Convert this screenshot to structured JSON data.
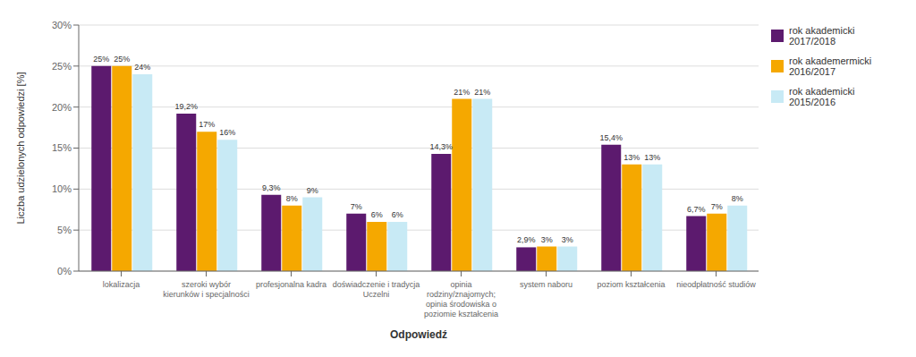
{
  "chart_data": {
    "type": "bar",
    "xlabel": "Odpowiedź",
    "ylabel": "Liczba udzielonych odpowiedzi [%]",
    "categories": [
      "lokalizacja",
      "szeroki wybór\nkierunków i specjalności",
      "profesjonalna kadra",
      "doświadczenie i tradycja\nUczelni",
      "opinia\nrodziny/znajomych;\nopinia środowiska o\npoziomie kształcenia",
      "system naboru",
      "poziom kształcenia",
      "nieodpłatność studiów"
    ],
    "series": [
      {
        "name": "rok akademicki\n2017/2018",
        "color": "#5c1a6e",
        "values": [
          25,
          19.2,
          9.3,
          7,
          14.3,
          2.9,
          15.4,
          6.7
        ],
        "value_labels": [
          "25%",
          "19,2%",
          "9,3%",
          "7%",
          "14,3%",
          "2,9%",
          "15,4%",
          "6,7%"
        ]
      },
      {
        "name": "rok akademermicki\n2016/2017",
        "color": "#f5a800",
        "values": [
          25,
          17,
          8,
          6,
          21,
          3,
          13,
          7
        ],
        "value_labels": [
          "25%",
          "17%",
          "8%",
          "6%",
          "21%",
          "3%",
          "13%",
          "7%"
        ]
      },
      {
        "name": "rok akademicki\n2015/2016",
        "color": "#c8eaf5",
        "values": [
          24,
          16,
          9,
          6,
          21,
          3,
          13,
          8
        ],
        "value_labels": [
          "24%",
          "16%",
          "9%",
          "6%",
          "21%",
          "3%",
          "13%",
          "8%"
        ]
      }
    ],
    "ylim": [
      0,
      30
    ],
    "yticks": [
      {
        "value": 0,
        "label": "0%"
      },
      {
        "value": 5,
        "label": "5%"
      },
      {
        "value": 10,
        "label": "10%"
      },
      {
        "value": 15,
        "label": "15%"
      },
      {
        "value": 20,
        "label": "20%"
      },
      {
        "value": 25,
        "label": "25%"
      },
      {
        "value": 30,
        "label": "30%"
      }
    ],
    "grid": true,
    "legend": "upper right",
    "data_labels": true
  }
}
